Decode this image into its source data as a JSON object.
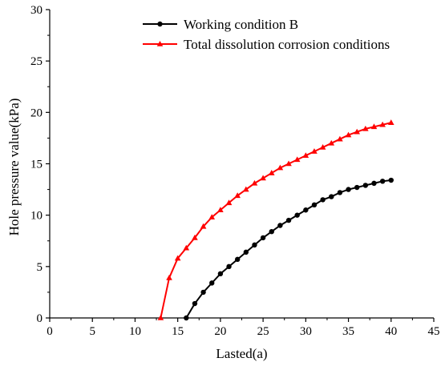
{
  "chart_data": {
    "type": "line",
    "title": "",
    "xlabel": "Lasted(a)",
    "ylabel": "Hole pressure value(kPa)",
    "xlim": [
      0,
      45
    ],
    "ylim": [
      0,
      30
    ],
    "xticks": [
      0,
      5,
      10,
      15,
      20,
      25,
      30,
      35,
      40,
      45
    ],
    "yticks": [
      0,
      5,
      10,
      15,
      20,
      25,
      30
    ],
    "grid": false,
    "legend_position": "top",
    "series": [
      {
        "name": "Working condition B",
        "color": "#000000",
        "marker": "circle",
        "x": [
          16,
          17,
          18,
          19,
          20,
          21,
          22,
          23,
          24,
          25,
          26,
          27,
          28,
          29,
          30,
          31,
          32,
          33,
          34,
          35,
          36,
          37,
          38,
          39,
          40
        ],
        "y": [
          0,
          1.4,
          2.5,
          3.4,
          4.3,
          5.0,
          5.7,
          6.4,
          7.1,
          7.8,
          8.4,
          9.0,
          9.5,
          10.0,
          10.5,
          11.0,
          11.5,
          11.8,
          12.2,
          12.5,
          12.7,
          12.9,
          13.1,
          13.3,
          13.4
        ]
      },
      {
        "name": "Total dissolution corrosion conditions",
        "color": "#ff0000",
        "marker": "triangle",
        "x": [
          13,
          14,
          15,
          16,
          17,
          18,
          19,
          20,
          21,
          22,
          23,
          24,
          25,
          26,
          27,
          28,
          29,
          30,
          31,
          32,
          33,
          34,
          35,
          36,
          37,
          38,
          39,
          40
        ],
        "y": [
          0,
          3.9,
          5.8,
          6.8,
          7.8,
          8.9,
          9.8,
          10.5,
          11.2,
          11.9,
          12.5,
          13.1,
          13.6,
          14.1,
          14.6,
          15.0,
          15.4,
          15.8,
          16.2,
          16.6,
          17.0,
          17.4,
          17.8,
          18.1,
          18.4,
          18.6,
          18.8,
          19.0
        ]
      }
    ]
  }
}
